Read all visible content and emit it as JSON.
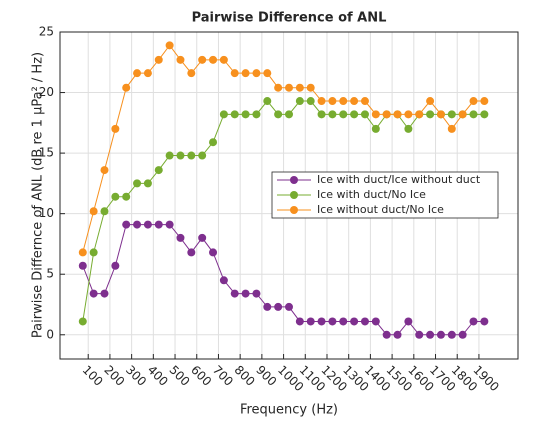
{
  "chart_data": {
    "type": "line",
    "title": "Pairwise Difference of ANL",
    "xlabel": "Frequency (Hz)",
    "ylabel": "Pairwise Differnce of ANL (dB re 1 μPa² / Hz)",
    "x": [
      75,
      125,
      175,
      225,
      275,
      325,
      375,
      425,
      475,
      525,
      575,
      625,
      675,
      725,
      775,
      825,
      875,
      925,
      975,
      1025,
      1075,
      1125,
      1175,
      1225,
      1275,
      1325,
      1375,
      1425,
      1475,
      1525,
      1575,
      1625,
      1675,
      1725,
      1775,
      1825,
      1875,
      1925
    ],
    "series": [
      {
        "name": "Ice with duct/Ice without duct",
        "color": "#7e2f8e",
        "values": [
          5.7,
          3.4,
          3.4,
          5.7,
          9.1,
          9.1,
          9.1,
          9.1,
          9.1,
          8.0,
          6.8,
          8.0,
          6.8,
          4.5,
          3.4,
          3.4,
          3.4,
          2.3,
          2.3,
          2.3,
          1.1,
          1.1,
          1.1,
          1.1,
          1.1,
          1.1,
          1.1,
          1.1,
          0,
          0,
          1.1,
          0,
          0,
          0,
          0,
          0,
          1.1,
          1.1
        ]
      },
      {
        "name": "Ice with duct/No Ice",
        "color": "#77ac30",
        "values": [
          1.1,
          6.8,
          10.2,
          11.4,
          11.4,
          12.5,
          12.5,
          13.6,
          14.8,
          14.8,
          14.8,
          14.8,
          15.9,
          18.2,
          18.2,
          18.2,
          18.2,
          19.3,
          18.2,
          18.2,
          19.3,
          19.3,
          18.2,
          18.2,
          18.2,
          18.2,
          18.2,
          17.0,
          18.2,
          18.2,
          17.0,
          18.2,
          18.2,
          18.2,
          18.2,
          18.2,
          18.2,
          18.2
        ]
      },
      {
        "name": "Ice without duct/No Ice",
        "color": "#f7901e",
        "values": [
          6.8,
          10.2,
          13.6,
          17.0,
          20.4,
          21.6,
          21.6,
          22.7,
          23.9,
          22.7,
          21.6,
          22.7,
          22.7,
          22.7,
          21.6,
          21.6,
          21.6,
          21.6,
          20.4,
          20.4,
          20.4,
          20.4,
          19.3,
          19.3,
          19.3,
          19.3,
          19.3,
          18.2,
          18.2,
          18.2,
          18.2,
          18.2,
          19.3,
          18.2,
          17.0,
          18.2,
          19.3,
          19.3
        ]
      }
    ],
    "xlim": [
      -30,
      2080
    ],
    "xticks": [
      100,
      200,
      300,
      400,
      500,
      600,
      700,
      800,
      900,
      1000,
      1100,
      1200,
      1300,
      1400,
      1500,
      1600,
      1700,
      1800,
      1900
    ],
    "ylim": [
      -2,
      25
    ],
    "yticks": [
      0,
      5,
      10,
      15,
      20,
      25
    ],
    "grid": true,
    "legend": "right"
  }
}
